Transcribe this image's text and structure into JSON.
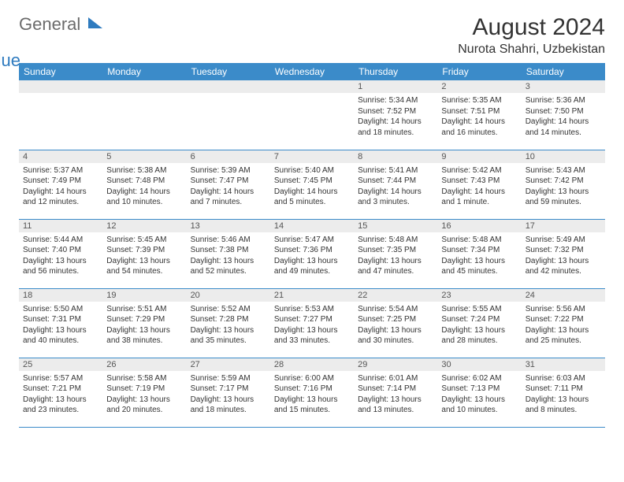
{
  "brand": {
    "part1": "General",
    "part2": "Blue"
  },
  "title": "August 2024",
  "location": "Nurota Shahri, Uzbekistan",
  "colors": {
    "header_bg": "#3b8bc9",
    "header_text": "#ffffff",
    "daynum_bg": "#ececec",
    "rule": "#3b8bc9",
    "logo_gray": "#6b6b6b",
    "logo_blue": "#2f7bbf"
  },
  "daysOfWeek": [
    "Sunday",
    "Monday",
    "Tuesday",
    "Wednesday",
    "Thursday",
    "Friday",
    "Saturday"
  ],
  "weeks": [
    [
      {
        "n": "",
        "sr": "",
        "ss": "",
        "dl": ""
      },
      {
        "n": "",
        "sr": "",
        "ss": "",
        "dl": ""
      },
      {
        "n": "",
        "sr": "",
        "ss": "",
        "dl": ""
      },
      {
        "n": "",
        "sr": "",
        "ss": "",
        "dl": ""
      },
      {
        "n": "1",
        "sr": "Sunrise: 5:34 AM",
        "ss": "Sunset: 7:52 PM",
        "dl": "Daylight: 14 hours and 18 minutes."
      },
      {
        "n": "2",
        "sr": "Sunrise: 5:35 AM",
        "ss": "Sunset: 7:51 PM",
        "dl": "Daylight: 14 hours and 16 minutes."
      },
      {
        "n": "3",
        "sr": "Sunrise: 5:36 AM",
        "ss": "Sunset: 7:50 PM",
        "dl": "Daylight: 14 hours and 14 minutes."
      }
    ],
    [
      {
        "n": "4",
        "sr": "Sunrise: 5:37 AM",
        "ss": "Sunset: 7:49 PM",
        "dl": "Daylight: 14 hours and 12 minutes."
      },
      {
        "n": "5",
        "sr": "Sunrise: 5:38 AM",
        "ss": "Sunset: 7:48 PM",
        "dl": "Daylight: 14 hours and 10 minutes."
      },
      {
        "n": "6",
        "sr": "Sunrise: 5:39 AM",
        "ss": "Sunset: 7:47 PM",
        "dl": "Daylight: 14 hours and 7 minutes."
      },
      {
        "n": "7",
        "sr": "Sunrise: 5:40 AM",
        "ss": "Sunset: 7:45 PM",
        "dl": "Daylight: 14 hours and 5 minutes."
      },
      {
        "n": "8",
        "sr": "Sunrise: 5:41 AM",
        "ss": "Sunset: 7:44 PM",
        "dl": "Daylight: 14 hours and 3 minutes."
      },
      {
        "n": "9",
        "sr": "Sunrise: 5:42 AM",
        "ss": "Sunset: 7:43 PM",
        "dl": "Daylight: 14 hours and 1 minute."
      },
      {
        "n": "10",
        "sr": "Sunrise: 5:43 AM",
        "ss": "Sunset: 7:42 PM",
        "dl": "Daylight: 13 hours and 59 minutes."
      }
    ],
    [
      {
        "n": "11",
        "sr": "Sunrise: 5:44 AM",
        "ss": "Sunset: 7:40 PM",
        "dl": "Daylight: 13 hours and 56 minutes."
      },
      {
        "n": "12",
        "sr": "Sunrise: 5:45 AM",
        "ss": "Sunset: 7:39 PM",
        "dl": "Daylight: 13 hours and 54 minutes."
      },
      {
        "n": "13",
        "sr": "Sunrise: 5:46 AM",
        "ss": "Sunset: 7:38 PM",
        "dl": "Daylight: 13 hours and 52 minutes."
      },
      {
        "n": "14",
        "sr": "Sunrise: 5:47 AM",
        "ss": "Sunset: 7:36 PM",
        "dl": "Daylight: 13 hours and 49 minutes."
      },
      {
        "n": "15",
        "sr": "Sunrise: 5:48 AM",
        "ss": "Sunset: 7:35 PM",
        "dl": "Daylight: 13 hours and 47 minutes."
      },
      {
        "n": "16",
        "sr": "Sunrise: 5:48 AM",
        "ss": "Sunset: 7:34 PM",
        "dl": "Daylight: 13 hours and 45 minutes."
      },
      {
        "n": "17",
        "sr": "Sunrise: 5:49 AM",
        "ss": "Sunset: 7:32 PM",
        "dl": "Daylight: 13 hours and 42 minutes."
      }
    ],
    [
      {
        "n": "18",
        "sr": "Sunrise: 5:50 AM",
        "ss": "Sunset: 7:31 PM",
        "dl": "Daylight: 13 hours and 40 minutes."
      },
      {
        "n": "19",
        "sr": "Sunrise: 5:51 AM",
        "ss": "Sunset: 7:29 PM",
        "dl": "Daylight: 13 hours and 38 minutes."
      },
      {
        "n": "20",
        "sr": "Sunrise: 5:52 AM",
        "ss": "Sunset: 7:28 PM",
        "dl": "Daylight: 13 hours and 35 minutes."
      },
      {
        "n": "21",
        "sr": "Sunrise: 5:53 AM",
        "ss": "Sunset: 7:27 PM",
        "dl": "Daylight: 13 hours and 33 minutes."
      },
      {
        "n": "22",
        "sr": "Sunrise: 5:54 AM",
        "ss": "Sunset: 7:25 PM",
        "dl": "Daylight: 13 hours and 30 minutes."
      },
      {
        "n": "23",
        "sr": "Sunrise: 5:55 AM",
        "ss": "Sunset: 7:24 PM",
        "dl": "Daylight: 13 hours and 28 minutes."
      },
      {
        "n": "24",
        "sr": "Sunrise: 5:56 AM",
        "ss": "Sunset: 7:22 PM",
        "dl": "Daylight: 13 hours and 25 minutes."
      }
    ],
    [
      {
        "n": "25",
        "sr": "Sunrise: 5:57 AM",
        "ss": "Sunset: 7:21 PM",
        "dl": "Daylight: 13 hours and 23 minutes."
      },
      {
        "n": "26",
        "sr": "Sunrise: 5:58 AM",
        "ss": "Sunset: 7:19 PM",
        "dl": "Daylight: 13 hours and 20 minutes."
      },
      {
        "n": "27",
        "sr": "Sunrise: 5:59 AM",
        "ss": "Sunset: 7:17 PM",
        "dl": "Daylight: 13 hours and 18 minutes."
      },
      {
        "n": "28",
        "sr": "Sunrise: 6:00 AM",
        "ss": "Sunset: 7:16 PM",
        "dl": "Daylight: 13 hours and 15 minutes."
      },
      {
        "n": "29",
        "sr": "Sunrise: 6:01 AM",
        "ss": "Sunset: 7:14 PM",
        "dl": "Daylight: 13 hours and 13 minutes."
      },
      {
        "n": "30",
        "sr": "Sunrise: 6:02 AM",
        "ss": "Sunset: 7:13 PM",
        "dl": "Daylight: 13 hours and 10 minutes."
      },
      {
        "n": "31",
        "sr": "Sunrise: 6:03 AM",
        "ss": "Sunset: 7:11 PM",
        "dl": "Daylight: 13 hours and 8 minutes."
      }
    ]
  ]
}
